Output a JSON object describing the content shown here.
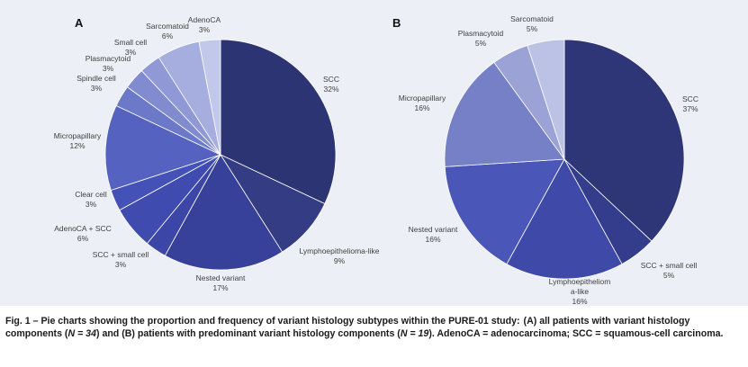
{
  "chart_data": [
    {
      "type": "pie",
      "panel": "A",
      "start_angle_deg": 0,
      "direction": "clockwise",
      "slices": [
        {
          "name": "SCC",
          "value": 32,
          "label": "32%",
          "color": "#2d3473"
        },
        {
          "name": "Lymphoepithelioma-like",
          "value": 9,
          "label": "9%",
          "color": "#343c84"
        },
        {
          "name": "Nested variant",
          "value": 17,
          "label": "17%",
          "color": "#38419a"
        },
        {
          "name": "SCC + small cell",
          "value": 3,
          "label": "3%",
          "color": "#3c46a6"
        },
        {
          "name": "AdenoCA + SCC",
          "value": 6,
          "label": "6%",
          "color": "#3f4bae"
        },
        {
          "name": "Clear cell",
          "value": 3,
          "label": "3%",
          "color": "#4452b8"
        },
        {
          "name": "Micropapillary",
          "value": 12,
          "label": "12%",
          "color": "#5662c0"
        },
        {
          "name": "Spindle cell",
          "value": 3,
          "label": "3%",
          "color": "#6c78c8"
        },
        {
          "name": "Plasmacytoid",
          "value": 3,
          "label": "3%",
          "color": "#808bd0"
        },
        {
          "name": "Small cell",
          "value": 3,
          "label": "3%",
          "color": "#9099d6"
        },
        {
          "name": "Sarcomatoid",
          "value": 6,
          "label": "6%",
          "color": "#a6aedf"
        },
        {
          "name": "AdenoCA",
          "value": 3,
          "label": "3%",
          "color": "#c2c8ea"
        }
      ]
    },
    {
      "type": "pie",
      "panel": "B",
      "start_angle_deg": 0,
      "direction": "clockwise",
      "slices": [
        {
          "name": "SCC",
          "value": 37,
          "label": "37%",
          "color": "#2f3678"
        },
        {
          "name": "SCC + small cell",
          "value": 5,
          "label": "5%",
          "color": "#343d8c"
        },
        {
          "name": "Lymphoepithelioma-like",
          "display": [
            "Lymphoepitheliom",
            "a-like"
          ],
          "value": 16,
          "label": "16%",
          "color": "#3f49a8"
        },
        {
          "name": "Nested variant",
          "value": 16,
          "label": "16%",
          "color": "#4a56b8"
        },
        {
          "name": "Micropapillary",
          "value": 16,
          "label": "16%",
          "color": "#7680c6"
        },
        {
          "name": "Plasmacytoid",
          "value": 5,
          "label": "5%",
          "color": "#9aa2d6"
        },
        {
          "name": "Sarcomatoid",
          "value": 5,
          "label": "5%",
          "color": "#bcc2e6"
        }
      ]
    }
  ],
  "caption": {
    "title": "Fig. 1 – Pie charts showing the proportion and frequency of variant histology subtypes within the PURE-01 study:",
    "part_a": "(A) all patients with variant histology components (",
    "n_a": "N = 34",
    "part_b": ") and (B) patients with predominant variant histology components (",
    "n_b": "N = 19",
    "part_c": "). AdenoCA = adenocarcinoma; SCC = squamous-cell carcinoma."
  }
}
